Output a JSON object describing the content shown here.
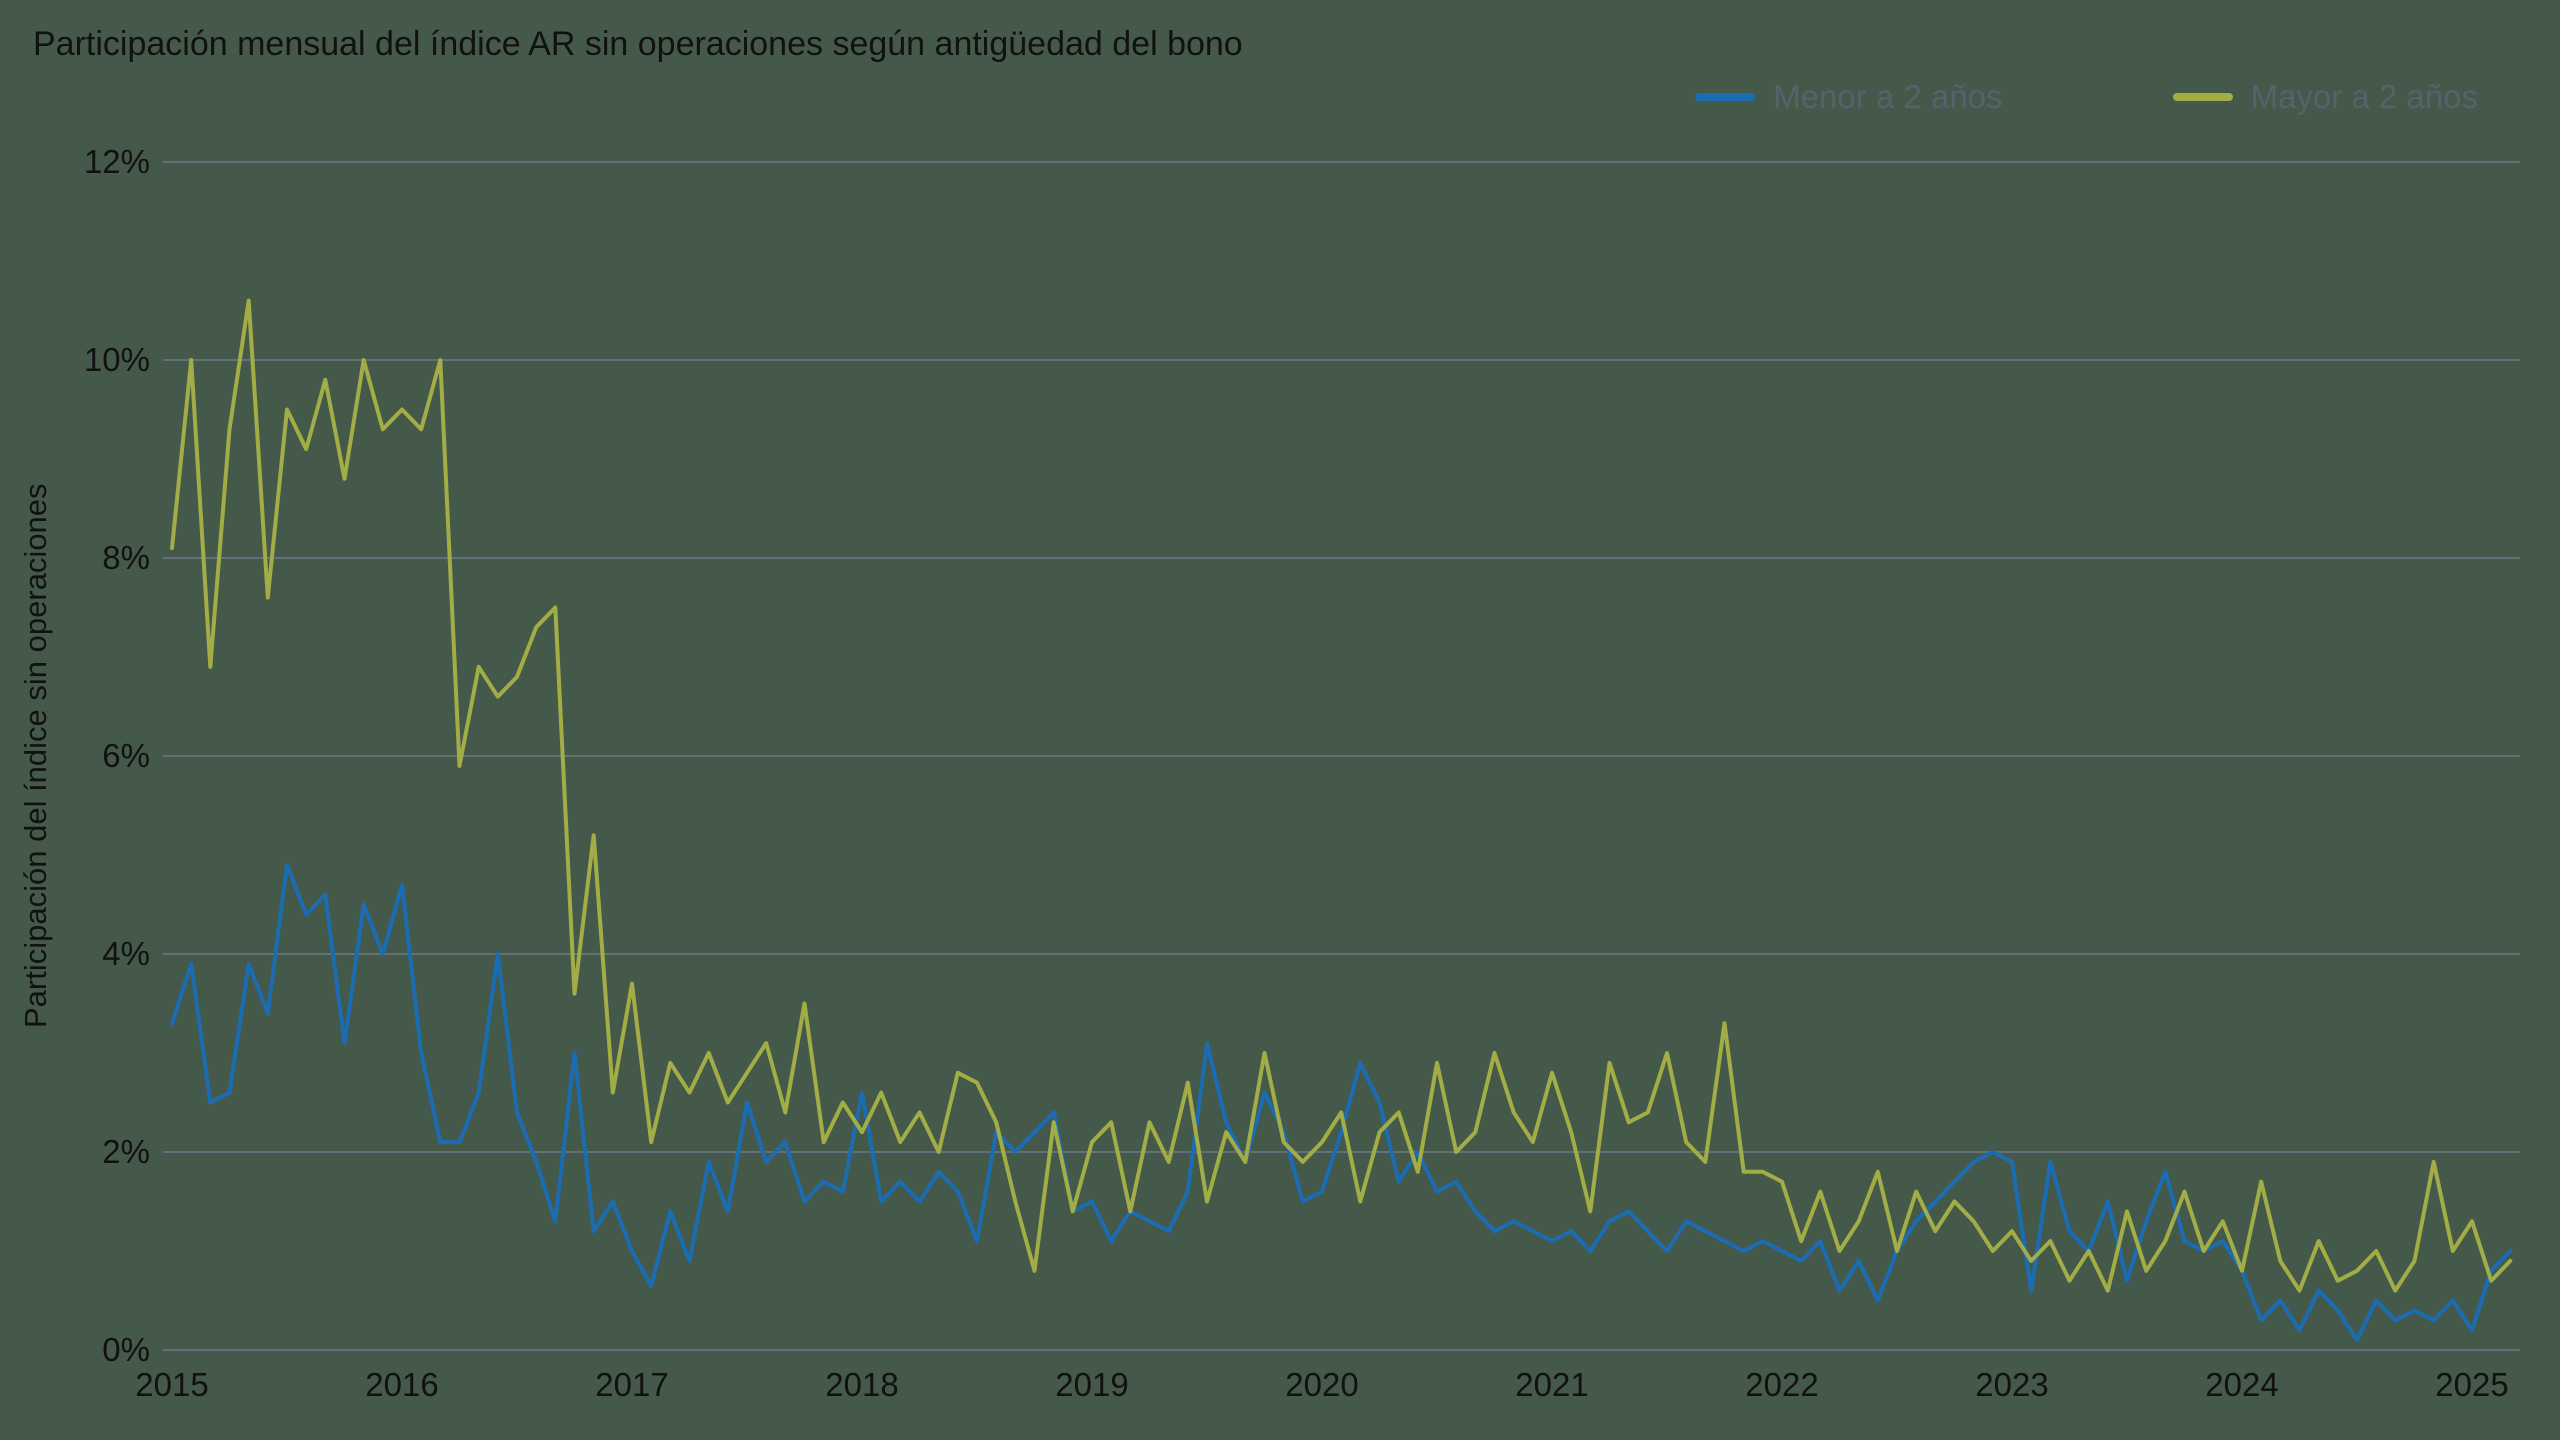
{
  "theme": {
    "background": "#45594a",
    "text": "#111111",
    "grid": "#757d90",
    "legend_text": "#57616c"
  },
  "chart_data": {
    "type": "line",
    "title": "Participación mensual del índice AR sin operaciones según antigüedad del bono",
    "ylabel": "Participación del índice sin operaciones",
    "xlabel": "",
    "ylim": [
      0,
      12
    ],
    "yticks": [
      0,
      2,
      4,
      6,
      8,
      10,
      12
    ],
    "ytick_labels": [
      "0%",
      "2%",
      "4%",
      "6%",
      "8%",
      "10%",
      "12%"
    ],
    "xtick_labels": [
      "2015",
      "2016",
      "2017",
      "2018",
      "2019",
      "2020",
      "2021",
      "2022",
      "2023",
      "2024",
      "2025"
    ],
    "x_frequency": "monthly",
    "x_start": "2015-01",
    "x_end": "2025-03",
    "grid": "horizontal",
    "legend_position": "top-right",
    "series": [
      {
        "name": "Menor a 2 años",
        "color": "#1b6cb3",
        "values": [
          3.3,
          3.9,
          2.5,
          2.6,
          3.9,
          3.4,
          4.9,
          4.4,
          4.6,
          3.1,
          4.5,
          4.0,
          4.7,
          3.0,
          2.1,
          2.1,
          2.6,
          4.0,
          2.4,
          1.9,
          1.3,
          3.0,
          1.2,
          1.5,
          1.0,
          0.65,
          1.4,
          0.9,
          1.9,
          1.4,
          2.5,
          1.9,
          2.1,
          1.5,
          1.7,
          1.6,
          2.6,
          1.5,
          1.7,
          1.5,
          1.8,
          1.6,
          1.1,
          2.2,
          2.0,
          2.2,
          2.4,
          1.4,
          1.5,
          1.1,
          1.4,
          1.3,
          1.2,
          1.6,
          3.1,
          2.3,
          1.9,
          2.6,
          2.2,
          1.5,
          1.6,
          2.2,
          2.9,
          2.5,
          1.7,
          2.0,
          1.6,
          1.7,
          1.4,
          1.2,
          1.3,
          1.2,
          1.1,
          1.2,
          1.0,
          1.3,
          1.4,
          1.2,
          1.0,
          1.3,
          1.2,
          1.1,
          1.0,
          1.1,
          1.0,
          0.9,
          1.1,
          0.6,
          0.9,
          0.5,
          1.0,
          1.3,
          1.5,
          1.7,
          1.9,
          2.0,
          1.9,
          0.6,
          1.9,
          1.2,
          1.0,
          1.5,
          0.7,
          1.3,
          1.8,
          1.1,
          1.0,
          1.1,
          0.8,
          0.3,
          0.5,
          0.2,
          0.6,
          0.4,
          0.1,
          0.5,
          0.3,
          0.4,
          0.3,
          0.5,
          0.2,
          0.8,
          1.0
        ]
      },
      {
        "name": "Mayor a 2 años",
        "color": "#a2ad46",
        "values": [
          8.1,
          10.0,
          6.9,
          9.3,
          10.6,
          7.6,
          9.5,
          9.1,
          9.8,
          8.8,
          10.0,
          9.3,
          9.5,
          9.3,
          10.0,
          5.9,
          6.9,
          6.6,
          6.8,
          7.3,
          7.5,
          3.6,
          5.2,
          2.6,
          3.7,
          2.1,
          2.9,
          2.6,
          3.0,
          2.5,
          2.8,
          3.1,
          2.4,
          3.5,
          2.1,
          2.5,
          2.2,
          2.6,
          2.1,
          2.4,
          2.0,
          2.8,
          2.7,
          2.3,
          1.5,
          0.8,
          2.3,
          1.4,
          2.1,
          2.3,
          1.4,
          2.3,
          1.9,
          2.7,
          1.5,
          2.2,
          1.9,
          3.0,
          2.1,
          1.9,
          2.1,
          2.4,
          1.5,
          2.2,
          2.4,
          1.8,
          2.9,
          2.0,
          2.2,
          3.0,
          2.4,
          2.1,
          2.8,
          2.2,
          1.4,
          2.9,
          2.3,
          2.4,
          3.0,
          2.1,
          1.9,
          3.3,
          1.8,
          1.8,
          1.7,
          1.1,
          1.6,
          1.0,
          1.3,
          1.8,
          1.0,
          1.6,
          1.2,
          1.5,
          1.3,
          1.0,
          1.2,
          0.9,
          1.1,
          0.7,
          1.0,
          0.6,
          1.4,
          0.8,
          1.1,
          1.6,
          1.0,
          1.3,
          0.8,
          1.7,
          0.9,
          0.6,
          1.1,
          0.7,
          0.8,
          1.0,
          0.6,
          0.9,
          1.9,
          1.0,
          1.3,
          0.7,
          0.9
        ]
      }
    ]
  }
}
